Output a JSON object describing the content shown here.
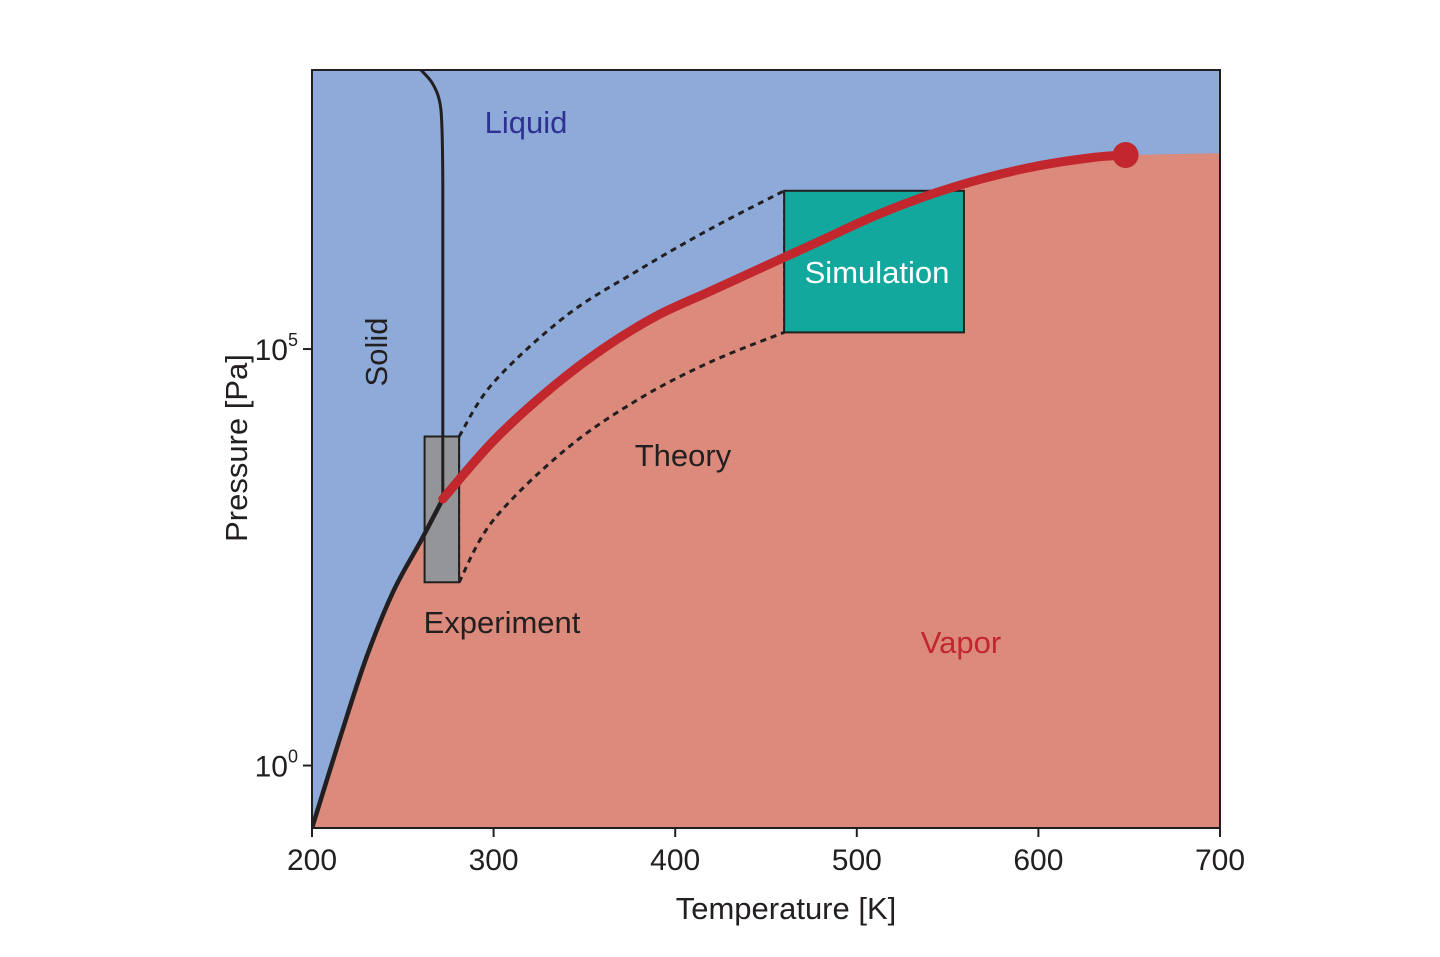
{
  "chart_data": {
    "type": "area",
    "xlabel": "Temperature [K]",
    "ylabel": "Pressure [Pa]",
    "xlim": [
      200,
      700
    ],
    "x_ticks": [
      "200",
      "300",
      "400",
      "500",
      "600",
      "700"
    ],
    "y_ticks": [
      {
        "base": "10",
        "exp": "0",
        "value_log10": 0
      },
      {
        "base": "10",
        "exp": "5",
        "value_log10": 5
      }
    ],
    "y_scale": "log",
    "ylim_log10": [
      -0.75,
      8.35
    ],
    "regions": [
      {
        "label": "Liquid",
        "color": "#8eaad8",
        "text_color": "#2e3192"
      },
      {
        "label": "Solid",
        "color": "#8eaad8",
        "text_color": "#231f20"
      },
      {
        "label": "Vapor",
        "color": "#db8a7b",
        "text_color": "#c1272d"
      }
    ],
    "method_labels": {
      "experiment": "Experiment",
      "theory": "Theory",
      "simulation": "Simulation"
    },
    "colors": {
      "liquid": "#8eaad8",
      "vapor": "#db8a7b",
      "coexistence_line": "#c1272d",
      "experiment_box": "#939598",
      "simulation_box": "#13a89e",
      "boundary": "#231f20"
    },
    "series": [
      {
        "name": "",
        "role": "sublimation-curve",
        "points": [
          [
            200,
            -0.75
          ],
          [
            215,
            0.3
          ],
          [
            230,
            1.3
          ],
          [
            245,
            2.1
          ],
          [
            260,
            2.7
          ],
          [
            272,
            3.2
          ]
        ]
      },
      {
        "name": "",
        "role": "melting-curve",
        "points": [
          [
            272,
            3.2
          ],
          [
            272,
            5.2
          ],
          [
            272,
            7.0
          ],
          [
            271.5,
            7.7
          ],
          [
            270,
            8.0
          ],
          [
            266,
            8.2
          ],
          [
            260,
            8.35
          ]
        ]
      },
      {
        "name": "",
        "role": "vapor-liquid-coexistence",
        "points": [
          [
            272,
            3.2
          ],
          [
            300,
            3.9
          ],
          [
            330,
            4.5
          ],
          [
            360,
            5.0
          ],
          [
            390,
            5.4
          ],
          [
            420,
            5.7
          ],
          [
            450,
            6.0
          ],
          [
            480,
            6.3
          ],
          [
            510,
            6.6
          ],
          [
            540,
            6.85
          ],
          [
            570,
            7.05
          ],
          [
            600,
            7.2
          ],
          [
            630,
            7.3
          ],
          [
            648,
            7.33
          ]
        ]
      },
      {
        "name": "",
        "role": "vapor-upper-boundary",
        "points": [
          [
            648,
            7.33
          ],
          [
            700,
            7.35
          ]
        ]
      }
    ],
    "critical_point": {
      "x": 648,
      "y_log10": 7.33
    },
    "experiment_box": {
      "x": [
        262,
        281
      ],
      "y_log10": [
        2.2,
        3.95
      ]
    },
    "simulation_box": {
      "x": [
        460,
        559
      ],
      "y_log10": [
        5.2,
        6.9
      ]
    },
    "theory_envelope": {
      "upper": [
        [
          281,
          3.95
        ],
        [
          300,
          4.6
        ],
        [
          340,
          5.4
        ],
        [
          380,
          5.95
        ],
        [
          420,
          6.45
        ],
        [
          460,
          6.9
        ]
      ],
      "lower": [
        [
          281,
          2.2
        ],
        [
          300,
          2.95
        ],
        [
          340,
          3.8
        ],
        [
          380,
          4.4
        ],
        [
          420,
          4.85
        ],
        [
          460,
          5.2
        ]
      ]
    }
  }
}
